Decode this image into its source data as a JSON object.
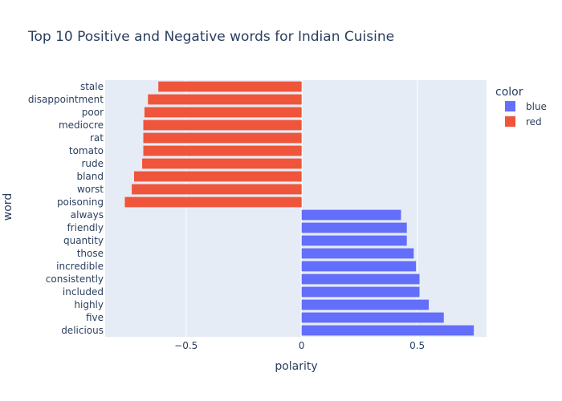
{
  "chart_data": {
    "type": "bar",
    "orientation": "horizontal",
    "title": "Top 10 Positive and Negative words for Indian Cuisine",
    "xlabel": "polarity",
    "ylabel": "word",
    "xlim": [
      -0.85,
      0.8
    ],
    "x_ticks": [
      {
        "value": -0.5,
        "label": "−0.5"
      },
      {
        "value": 0,
        "label": "0"
      },
      {
        "value": 0.5,
        "label": "0.5"
      }
    ],
    "categories": [
      "stale",
      "disappointment",
      "poor",
      "mediocre",
      "rat",
      "tomato",
      "rude",
      "bland",
      "worst",
      "poisoning",
      "always",
      "friendly",
      "quantity",
      "those",
      "incredible",
      "consistently",
      "included",
      "highly",
      "five",
      "delicious"
    ],
    "values": [
      -0.62,
      -0.665,
      -0.68,
      -0.685,
      -0.685,
      -0.685,
      -0.69,
      -0.725,
      -0.735,
      -0.765,
      0.43,
      0.455,
      0.455,
      0.485,
      0.495,
      0.51,
      0.51,
      0.55,
      0.615,
      0.745
    ],
    "bar_colors": [
      "red",
      "red",
      "red",
      "red",
      "red",
      "red",
      "red",
      "red",
      "red",
      "red",
      "blue",
      "blue",
      "blue",
      "blue",
      "blue",
      "blue",
      "blue",
      "blue",
      "blue",
      "blue"
    ],
    "legend": {
      "title": "color",
      "position": "top-right",
      "items": [
        {
          "label": "blue",
          "color": "#636efa"
        },
        {
          "label": "red",
          "color": "#ef553b"
        }
      ]
    },
    "colors": {
      "blue": "#636efa",
      "red": "#ef553b",
      "plot_bg": "#e5ecf6",
      "grid": "#ffffff"
    },
    "grid": true
  }
}
